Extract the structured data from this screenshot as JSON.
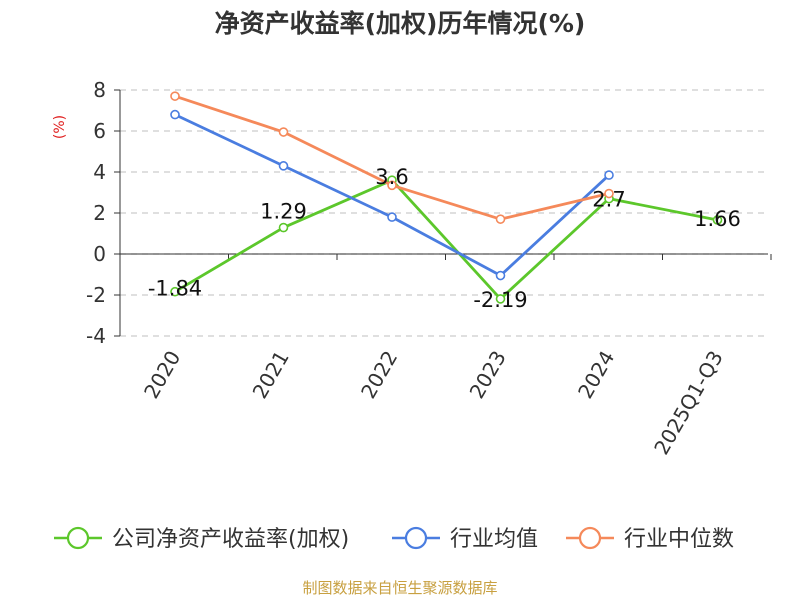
{
  "chart_data": {
    "type": "line",
    "title": "净资产收益率(加权)历年情况(%)",
    "ylabel": "(%)",
    "xlabel": "",
    "categories": [
      "2020",
      "2021",
      "2022",
      "2023",
      "2024",
      "2025Q1-Q3"
    ],
    "ylim": [
      -4,
      8
    ],
    "yticks": [
      -4,
      -2,
      0,
      2,
      4,
      6,
      8
    ],
    "grid": true,
    "series": [
      {
        "name": "公司净资产收益率(加权)",
        "color": "#5cc72b",
        "values": [
          -1.84,
          1.29,
          3.6,
          -2.19,
          2.7,
          1.66
        ],
        "labels": [
          "-1.84",
          "1.29",
          "3.6",
          "-2.19",
          "2.7",
          "1.66"
        ]
      },
      {
        "name": "行业均值",
        "color": "#4a7de0",
        "values": [
          6.8,
          4.3,
          1.8,
          -1.05,
          3.85,
          null
        ]
      },
      {
        "name": "行业中位数",
        "color": "#f5895a",
        "values": [
          7.7,
          5.95,
          3.35,
          1.7,
          2.95,
          null
        ]
      }
    ],
    "legend_position": "bottom"
  },
  "colors": {
    "ylabel": "#e02020",
    "source": "#c8a040",
    "grid": "#cccccc",
    "axis": "#333333"
  },
  "source_text": "制图数据来自恒生聚源数据库"
}
